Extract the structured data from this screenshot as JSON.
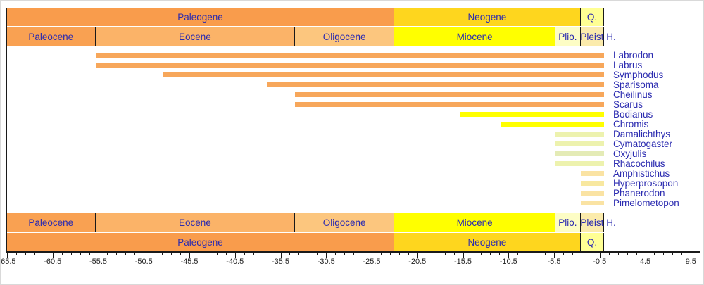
{
  "chart_data": {
    "type": "bar",
    "subtype": "stratigraphic-range-chart",
    "title": "",
    "text_color": "#2B2BB0",
    "bar_end_line_color": "#1a1a1a",
    "axis": {
      "unit": "Ma",
      "min": -65.5,
      "max": 10.5,
      "minor_tick_step": 1,
      "major_tick_step": 5,
      "major_ticks": [
        {
          "value": -65.5,
          "label": "-65.5"
        },
        {
          "value": -60.5,
          "label": "-60.5"
        },
        {
          "value": -55.5,
          "label": "-55.5"
        },
        {
          "value": -50.5,
          "label": "-50.5"
        },
        {
          "value": -45.5,
          "label": "-45.5"
        },
        {
          "value": -40.5,
          "label": "-40.5"
        },
        {
          "value": -35.5,
          "label": "-35.5"
        },
        {
          "value": -30.5,
          "label": "-30.5"
        },
        {
          "value": -25.5,
          "label": "-25.5"
        },
        {
          "value": -20.5,
          "label": "-20.5"
        },
        {
          "value": -15.5,
          "label": "-15.5"
        },
        {
          "value": -10.5,
          "label": "-10.5"
        },
        {
          "value": -5.5,
          "label": "-5.5"
        },
        {
          "value": -0.5,
          "label": "-0.5"
        },
        {
          "value": 4.5,
          "label": "4.5"
        },
        {
          "value": 9.5,
          "label": "9.5"
        }
      ]
    },
    "periods": [
      {
        "label": "Paleogene",
        "start": -65.5,
        "end": -23.03,
        "color": "#F99C4C"
      },
      {
        "label": "Neogene",
        "start": -23.03,
        "end": -2.588,
        "color": "#FED61E"
      },
      {
        "label": "Q.",
        "start": -2.588,
        "end": 0,
        "color": "#FFFF94"
      }
    ],
    "epochs": [
      {
        "label": "Paleocene",
        "start": -65.5,
        "end": -55.8,
        "color": "#F9A152"
      },
      {
        "label": "Eocene",
        "start": -55.8,
        "end": -33.9,
        "color": "#FBB368"
      },
      {
        "label": "Oligocene",
        "start": -33.9,
        "end": -23.03,
        "color": "#FCC67E"
      },
      {
        "label": "Miocene",
        "start": -23.03,
        "end": -5.332,
        "color": "#FFFF00"
      },
      {
        "label": "Plio.",
        "start": -5.332,
        "end": -2.588,
        "color": "#FDFDC5"
      },
      {
        "label": "Pleist",
        "start": -2.588,
        "end": -0.01,
        "color": "#FBEBAC"
      },
      {
        "label": "H.",
        "start": -0.01,
        "end": 0,
        "color": "#FFFFFF",
        "label_outside": true
      }
    ],
    "taxa": [
      {
        "name": "Labrodon",
        "start": -55.8,
        "end": 0,
        "color": "#F7A75B"
      },
      {
        "name": "Labrus",
        "start": -55.8,
        "end": 0,
        "color": "#F7A75B"
      },
      {
        "name": "Symphodus",
        "start": -48.4,
        "end": 0,
        "color": "#F7A75B"
      },
      {
        "name": "Sparisoma",
        "start": -37.0,
        "end": 0,
        "color": "#F7A75B"
      },
      {
        "name": "Cheilinus",
        "start": -33.9,
        "end": 0,
        "color": "#F7A75B"
      },
      {
        "name": "Scarus",
        "start": -33.9,
        "end": 0,
        "color": "#F7A75B"
      },
      {
        "name": "Bodianus",
        "start": -15.8,
        "end": 0,
        "color": "#FFFF00"
      },
      {
        "name": "Chromis",
        "start": -11.4,
        "end": 0,
        "color": "#FFFF00"
      },
      {
        "name": "Damalichthys",
        "start": -5.332,
        "end": 0,
        "color": "#EDF2AE"
      },
      {
        "name": "Cymatogaster",
        "start": -5.332,
        "end": 0,
        "color": "#EDF2AE"
      },
      {
        "name": "Oxyjulis",
        "start": -5.332,
        "end": 0,
        "color": "#E4EBB6"
      },
      {
        "name": "Rhacochilus",
        "start": -5.332,
        "end": 0,
        "color": "#EDF2AE"
      },
      {
        "name": "Amphistichus",
        "start": -2.588,
        "end": 0,
        "color": "#FAE3A3"
      },
      {
        "name": "Hyperprosopon",
        "start": -2.588,
        "end": 0,
        "color": "#F8E8A0"
      },
      {
        "name": "Phanerodon",
        "start": -2.588,
        "end": 0,
        "color": "#FAE3A3"
      },
      {
        "name": "Pimelometopon",
        "start": -2.588,
        "end": 0,
        "color": "#FAE3A3"
      }
    ]
  }
}
